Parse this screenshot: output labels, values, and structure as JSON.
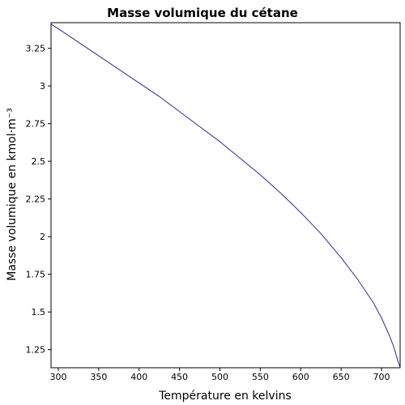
{
  "chart_data": {
    "type": "line",
    "title": "Masse volumique du cétane",
    "xlabel": "Température en kelvins",
    "ylabel": "Masse volumique en kmol·m⁻³",
    "xlim": [
      291,
      723
    ],
    "ylim": [
      1.13,
      3.42
    ],
    "xticks": [
      {
        "value": 300,
        "label": "300"
      },
      {
        "value": 350,
        "label": "350"
      },
      {
        "value": 400,
        "label": "400"
      },
      {
        "value": 450,
        "label": "450"
      },
      {
        "value": 500,
        "label": "500"
      },
      {
        "value": 550,
        "label": "550"
      },
      {
        "value": 600,
        "label": "600"
      },
      {
        "value": 650,
        "label": "650"
      },
      {
        "value": 700,
        "label": "700"
      }
    ],
    "yticks": [
      {
        "value": 1.25,
        "label": "1.25"
      },
      {
        "value": 1.5,
        "label": "1.5"
      },
      {
        "value": 1.75,
        "label": "1.75"
      },
      {
        "value": 2,
        "label": "2"
      },
      {
        "value": 2.25,
        "label": "2.25"
      },
      {
        "value": 2.5,
        "label": "2.5"
      },
      {
        "value": 2.75,
        "label": "2.75"
      },
      {
        "value": 3,
        "label": "3"
      },
      {
        "value": 3.25,
        "label": "3.25"
      }
    ],
    "grid": false,
    "series": [
      {
        "color": "#2b2b8c",
        "x": [
          291,
          300,
          325,
          350,
          375,
          400,
          425,
          450,
          475,
          500,
          525,
          550,
          575,
          600,
          625,
          650,
          670,
          690,
          700,
          710,
          715,
          720,
          723
        ],
        "y": [
          3.41,
          3.38,
          3.29,
          3.2,
          3.11,
          3.02,
          2.93,
          2.83,
          2.73,
          2.63,
          2.52,
          2.41,
          2.29,
          2.16,
          2.02,
          1.86,
          1.72,
          1.56,
          1.46,
          1.34,
          1.27,
          1.18,
          1.13
        ]
      }
    ]
  }
}
